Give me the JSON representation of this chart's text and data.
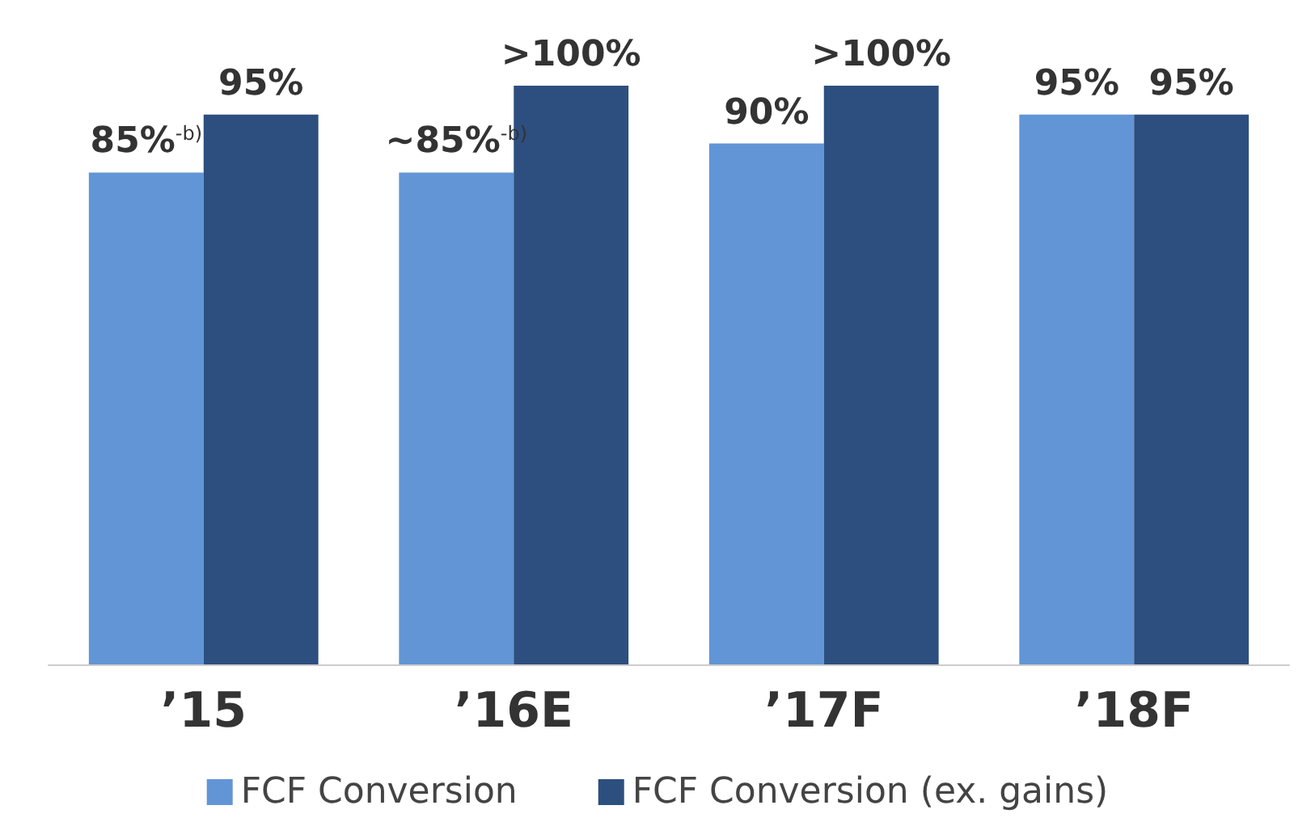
{
  "chart_data": {
    "type": "bar",
    "categories": [
      "’15",
      "’16E",
      "’17F",
      "’18F"
    ],
    "series": [
      {
        "name": "FCF Conversion",
        "color": "#6195d6",
        "values": [
          85,
          85,
          90,
          95
        ],
        "value_labels": [
          "85%$^{-b)}$",
          "~85%$^{-b)}$",
          "90%",
          "95%"
        ]
      },
      {
        "name": "FCF Conversion (ex. gains)",
        "color": "#2c4f7f",
        "values": [
          95,
          100,
          100,
          95
        ],
        "value_labels": [
          "95%",
          ">100%",
          ">100%",
          "95%"
        ]
      }
    ],
    "legend": "bottom"
  }
}
